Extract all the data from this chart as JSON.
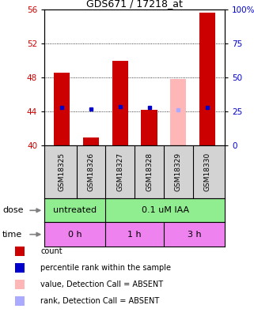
{
  "title": "GDS671 / 17218_at",
  "samples": [
    "GSM18325",
    "GSM18326",
    "GSM18327",
    "GSM18328",
    "GSM18329",
    "GSM18330"
  ],
  "bar_values": [
    48.6,
    41.0,
    50.0,
    44.2,
    47.8,
    55.6
  ],
  "bar_colors": [
    "#cc0000",
    "#cc0000",
    "#cc0000",
    "#cc0000",
    "#ffb6b6",
    "#cc0000"
  ],
  "rank_values": [
    44.5,
    44.3,
    44.6,
    44.5,
    44.2,
    44.5
  ],
  "rank_colors": [
    "#0000cc",
    "#0000cc",
    "#0000cc",
    "#0000cc",
    "#aaaaff",
    "#0000cc"
  ],
  "ylim_left": [
    40,
    56
  ],
  "ylim_right": [
    0,
    100
  ],
  "yticks_left": [
    40,
    44,
    48,
    52,
    56
  ],
  "yticks_right": [
    0,
    25,
    50,
    75,
    100
  ],
  "ytick_labels_right": [
    "0",
    "25",
    "50",
    "75",
    "100%"
  ],
  "base": 40,
  "dose_labels": [
    "untreated",
    "0.1 uM IAA"
  ],
  "time_labels": [
    "0 h",
    "1 h",
    "3 h"
  ],
  "legend_items": [
    {
      "color": "#cc0000",
      "label": "count"
    },
    {
      "color": "#0000cc",
      "label": "percentile rank within the sample"
    },
    {
      "color": "#ffb6b6",
      "label": "value, Detection Call = ABSENT"
    },
    {
      "color": "#aaaaff",
      "label": "rank, Detection Call = ABSENT"
    }
  ],
  "bar_width": 0.55,
  "left_color": "#cc0000",
  "right_color": "#0000cc",
  "gray_bg": "#d3d3d3",
  "green_bg": "#90ee90",
  "pink_bg": "#ee82ee"
}
